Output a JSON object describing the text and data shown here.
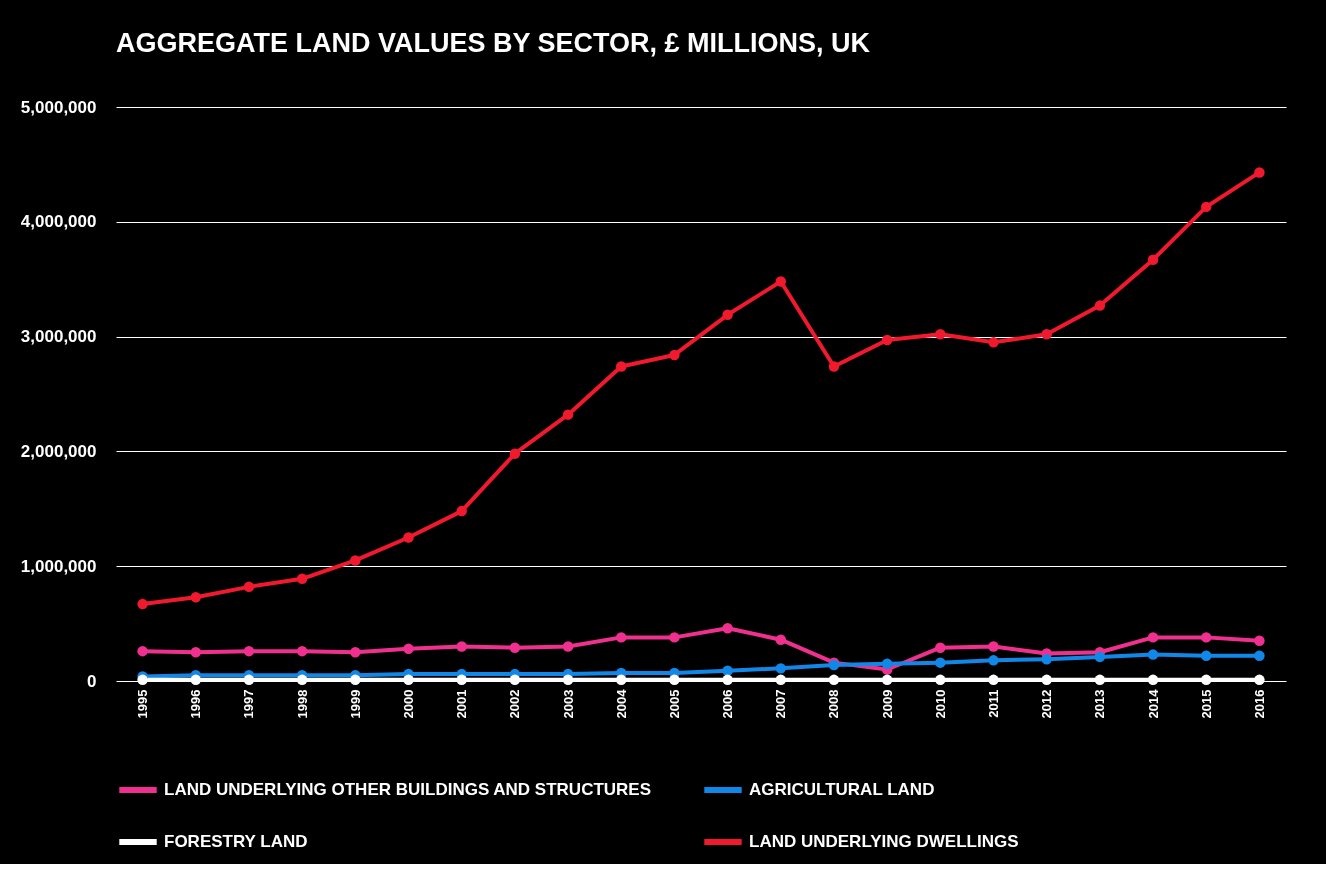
{
  "chart_data": {
    "type": "line",
    "title": "AGGREGATE LAND VALUES BY SECTOR, £ MILLIONS, UK",
    "categories": [
      "1995",
      "1996",
      "1997",
      "1998",
      "1999",
      "2000",
      "2001",
      "2002",
      "2003",
      "2004",
      "2005",
      "2006",
      "2007",
      "2008",
      "2009",
      "2010",
      "2011",
      "2012",
      "2013",
      "2014",
      "2015",
      "2016"
    ],
    "series": [
      {
        "name": "LAND UNDERLYING OTHER BUILDINGS AND STRUCTURES",
        "color": "#f0308f",
        "values": [
          260000,
          250000,
          260000,
          260000,
          250000,
          280000,
          300000,
          290000,
          300000,
          380000,
          380000,
          460000,
          360000,
          160000,
          100000,
          290000,
          300000,
          240000,
          250000,
          380000,
          380000,
          350000
        ]
      },
      {
        "name": "AGRICULTURAL LAND",
        "color": "#1188e8",
        "values": [
          40000,
          50000,
          50000,
          50000,
          50000,
          60000,
          60000,
          60000,
          60000,
          70000,
          70000,
          90000,
          110000,
          140000,
          150000,
          160000,
          180000,
          190000,
          210000,
          230000,
          220000,
          220000
        ]
      },
      {
        "name": "FORESTRY LAND",
        "color": "#ffffff",
        "values": [
          10000,
          10000,
          10000,
          10000,
          10000,
          10000,
          10000,
          10000,
          10000,
          10000,
          10000,
          10000,
          10000,
          10000,
          10000,
          10000,
          10000,
          10000,
          10000,
          10000,
          10000,
          10000
        ]
      },
      {
        "name": "LAND UNDERLYING DWELLINGS",
        "color": "#f0192d",
        "values": [
          670000,
          730000,
          820000,
          890000,
          1050000,
          1250000,
          1480000,
          1980000,
          2320000,
          2740000,
          2840000,
          3190000,
          3480000,
          2740000,
          2970000,
          3020000,
          2950000,
          3020000,
          3270000,
          3670000,
          4130000,
          4430000
        ]
      }
    ],
    "ylim": [
      0,
      5000000
    ],
    "yticks": [
      0,
      {
        "value": 1000000,
        "label": "1,000,000"
      },
      {
        "value": 2000000,
        "label": "2,000,000"
      },
      {
        "value": 3000000,
        "label": "3,000,000"
      },
      {
        "value": 4000000,
        "label": "4,000,000"
      },
      {
        "value": 5000000,
        "label": "5,000,000"
      }
    ],
    "grid": "y",
    "legend": "bottom",
    "marker": "circle",
    "line_style": "solid"
  }
}
